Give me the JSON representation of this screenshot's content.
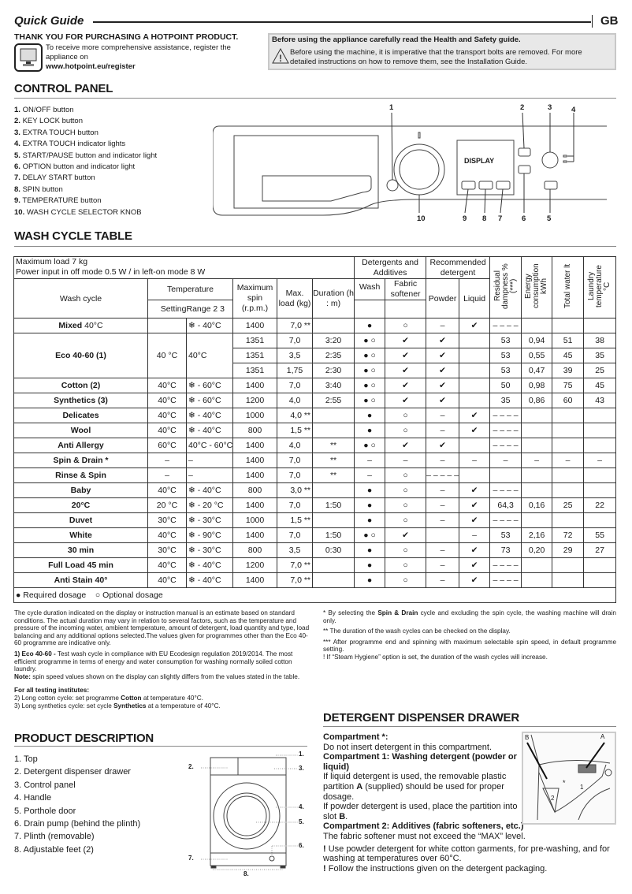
{
  "header": {
    "title": "Quick Guide",
    "lang": "GB"
  },
  "intro": {
    "thanks": "THANK YOU FOR PURCHASING A HOTPOINT PRODUCT.",
    "register_text": "To receive more comprehensive assistance, register the appliance on",
    "register_url": "www.hotpoint.eu/register",
    "icon": "computer-monitor-icon"
  },
  "safety": {
    "title": "Before using the appliance carefully read the Health and Safety guide.",
    "text": "Before using the machine, it is imperative that the transport bolts are removed. For more detailed instructions on how to remove them, see the Installation Guide.",
    "icon": "warning-triangle-icon"
  },
  "control_panel": {
    "title": "CONTROL PANEL",
    "items": [
      {
        "n": "1.",
        "label": "ON/OFF button"
      },
      {
        "n": "2.",
        "label": "KEY LOCK button"
      },
      {
        "n": "3.",
        "label": "EXTRA TOUCH button"
      },
      {
        "n": "4.",
        "label": "EXTRA TOUCH indicator lights"
      },
      {
        "n": "5.",
        "label": "START/PAUSE button and indicator light"
      },
      {
        "n": "6.",
        "label": "OPTION button and indicator light"
      },
      {
        "n": "7.",
        "label": "DELAY START button"
      },
      {
        "n": "8.",
        "label": "SPIN button"
      },
      {
        "n": "9.",
        "label": "TEMPERATURE button"
      },
      {
        "n": "10.",
        "label": "WASH CYCLE SELECTOR KNOB"
      }
    ],
    "display_label": "DISPLAY",
    "callouts": [
      "1",
      "2",
      "3",
      "4",
      "10",
      "9",
      "8",
      "7",
      "6",
      "5"
    ]
  },
  "wash_table": {
    "title": "WASH CYCLE TABLE",
    "max_load": "Maximum load 7 kg",
    "power": "Power input in off  mode 0.5 W / in left-on mode 8 W",
    "headers": {
      "wash_cycle": "Wash cycle",
      "temperature": "Temperature",
      "setting": "Setting",
      "range": "Range 2 3",
      "spin": "Maximum spin (r.p.m.)",
      "load": "Max. load (kg)",
      "duration": "Duration (h : m)",
      "detergents": "Detergents and Additives",
      "wash": "Wash",
      "softener": "Fabric softener",
      "recommended": "Recommended detergent",
      "powder": "Powder",
      "liquid": "Liquid",
      "residual": "Residual dampness % (***)",
      "energy": "Energy consumption kWh",
      "water": "Total water lt",
      "laundry": "Laundry temperature °C"
    },
    "rows": [
      {
        "name": "Mixed",
        "suffix": " 40°C",
        "setting": "",
        "range": "❄ - 40°C",
        "spin": "1400",
        "load": "7,0 **",
        "duration": "",
        "wash": "●",
        "softener": "○",
        "powder": "–",
        "liquid": "✔",
        "residual": "– – – –",
        "energy": "",
        "water": "",
        "laundry": ""
      },
      {
        "name": "Eco 40-60 (1)",
        "suffix": "",
        "setting": "40 °C",
        "range": "40°C",
        "spin": "1351",
        "load": "7,0",
        "duration": "3:20",
        "wash": "● ○",
        "softener": "✔",
        "powder": "✔",
        "liquid": "",
        "residual": "53",
        "energy": "0,94",
        "water": "51",
        "laundry": "38",
        "sub": [
          {
            "spin": "1351",
            "load": "3,5",
            "duration": "2:35",
            "wash": "● ○",
            "softener": "✔",
            "powder": "✔",
            "liquid": "",
            "residual": "53",
            "energy": "0,55",
            "water": "45",
            "laundry": "35"
          },
          {
            "spin": "1351",
            "load": "1,75",
            "duration": "2:30",
            "wash": "● ○",
            "softener": "✔",
            "powder": "✔",
            "liquid": "",
            "residual": "53",
            "energy": "0,47",
            "water": "39",
            "laundry": "25"
          }
        ]
      },
      {
        "name": "Cotton (2)",
        "suffix": "",
        "setting": "40°C",
        "range": "❄ - 60°C",
        "spin": "1400",
        "load": "7,0",
        "duration": "3:40",
        "wash": "● ○",
        "softener": "✔",
        "powder": "✔",
        "liquid": "",
        "residual": "50",
        "energy": "0,98",
        "water": "75",
        "laundry": "45"
      },
      {
        "name": "Synthetics (3)",
        "suffix": "",
        "setting": "40°C",
        "range": "❄ - 60°C",
        "spin": "1200",
        "load": "4,0",
        "duration": "2:55",
        "wash": "● ○",
        "softener": "✔",
        "powder": "✔",
        "liquid": "",
        "residual": "35",
        "energy": "0,86",
        "water": "60",
        "laundry": "43"
      },
      {
        "name": "Delicates",
        "suffix": "",
        "setting": "40°C",
        "range": "❄ - 40°C",
        "spin": "1000",
        "load": "4,0 **",
        "duration": "",
        "wash": "●",
        "softener": "○",
        "powder": "–",
        "liquid": "✔",
        "residual": "– – – –",
        "energy": "",
        "water": "",
        "laundry": ""
      },
      {
        "name": "Wool",
        "suffix": "",
        "setting": "40°C",
        "range": "❄ - 40°C",
        "spin": "800",
        "load": "1,5 **",
        "duration": "",
        "wash": "●",
        "softener": "○",
        "powder": "–",
        "liquid": "✔",
        "residual": "– – – –",
        "energy": "",
        "water": "",
        "laundry": ""
      },
      {
        "name": "Anti Allergy",
        "suffix": "",
        "setting": "60°C",
        "range": "40°C - 60°C",
        "spin": "1400",
        "load": "4,0",
        "duration": "**",
        "wash": "● ○",
        "softener": "✔",
        "powder": "✔",
        "liquid": "",
        "residual": "– – – –",
        "energy": "",
        "water": "",
        "laundry": ""
      },
      {
        "name": "Spin & Drain *",
        "suffix": "",
        "setting": "–",
        "range": "–",
        "spin": "1400",
        "load": "7,0",
        "duration": "**",
        "wash": "–",
        "softener": "–",
        "powder": "–",
        "liquid": "–",
        "residual": "–",
        "energy": "–",
        "water": "–",
        "laundry": "–"
      },
      {
        "name": "Rinse & Spin",
        "suffix": "",
        "setting": "–",
        "range": "–",
        "spin": "1400",
        "load": "7,0",
        "duration": "**",
        "wash": "–",
        "softener": "○",
        "powder": "– – – – – –",
        "liquid": "",
        "residual": "",
        "energy": "",
        "water": "",
        "laundry": ""
      },
      {
        "name": "Baby",
        "suffix": "",
        "setting": "40°C",
        "range": "❄ - 40°C",
        "spin": "800",
        "load": "3,0 **",
        "duration": "",
        "wash": "●",
        "softener": "○",
        "powder": "–",
        "liquid": "✔",
        "residual": "– – – –",
        "energy": "",
        "water": "",
        "laundry": ""
      },
      {
        "name": "20°C",
        "suffix": "",
        "setting": "20 °C",
        "range": "❄ - 20 °C",
        "spin": "1400",
        "load": "7,0",
        "duration": "1:50",
        "wash": "●",
        "softener": "○",
        "powder": "–",
        "liquid": "✔",
        "residual": "64,3",
        "energy": "0,16",
        "water": "25",
        "laundry": "22"
      },
      {
        "name": "Duvet",
        "suffix": "",
        "setting": "30°C",
        "range": "❄ - 30°C",
        "spin": "1000",
        "load": "1,5 **",
        "duration": "",
        "wash": "●",
        "softener": "○",
        "powder": "–",
        "liquid": "✔",
        "residual": "– – – –",
        "energy": "",
        "water": "",
        "laundry": ""
      },
      {
        "name": "White",
        "suffix": "",
        "setting": "40°C",
        "range": "❄ - 90°C",
        "spin": "1400",
        "load": "7,0",
        "duration": "1:50",
        "wash": "● ○",
        "softener": "✔",
        "powder": "",
        "liquid": "–",
        "residual": "53",
        "energy": "2,16",
        "water": "72",
        "laundry": "55"
      },
      {
        "name": "30 min",
        "suffix": "",
        "setting": "30°C",
        "range": "❄ - 30°C",
        "spin": "800",
        "load": "3,5",
        "duration": "0:30",
        "wash": "●",
        "softener": "○",
        "powder": "–",
        "liquid": "✔",
        "residual": "73",
        "energy": "0,20",
        "water": "29",
        "laundry": "27"
      },
      {
        "name": "Full Load 45 min",
        "suffix": "",
        "setting": "40°C",
        "range": "❄ - 40°C",
        "spin": "1200",
        "load": "7,0 **",
        "duration": "",
        "wash": "●",
        "softener": "○",
        "powder": "–",
        "liquid": "✔",
        "residual": "– – – –",
        "energy": "",
        "water": "",
        "laundry": ""
      },
      {
        "name": "Anti Stain 40°",
        "suffix": "",
        "setting": "40°C",
        "range": "❄ - 40°C",
        "spin": "1400",
        "load": "7,0 **",
        "duration": "",
        "wash": "●",
        "softener": "○",
        "powder": "–",
        "liquid": "✔",
        "residual": "– – – –",
        "energy": "",
        "water": "",
        "laundry": ""
      }
    ],
    "legend": {
      "required": "● Required dosage",
      "optional": "○ Optional dosage"
    }
  },
  "notes_left": {
    "p1": "The cycle duration indicated on the display or instruction manual is an estimate based on standard conditions. The actual duration may vary in relation to several factors, such as the temperature and pressure of the incoming water, ambient temperature, amount of detergent, load quantity and type, load balancing and any additional options selected.The values given for programmes other than the Eco 40-60 programme are indicative only.",
    "eco_label": "1) Eco 40-60 -",
    "eco_text": " Test wash cycle in compliance with EU Ecodesign regulation 2019/2014. The most efficient programme in terms of energy and water consumption for washing normally soiled cotton laundry.",
    "note_label": "Note:",
    "note_text": " spin speed values shown on the display can slightly differs from the values stated in the table.",
    "testing_title": "For all testing institutes:",
    "t2a": "2)  Long cotton cycle: set programme ",
    "t2b": "Cotton",
    "t2c": " at temperature 40°C.",
    "t3a": "3)  Long synthetics cycle: set cycle ",
    "t3b": "Synthetics",
    "t3c": " at a temperature of 40°C."
  },
  "notes_right": {
    "n1a": "* By selecting the ",
    "n1b": "Spin & Drain",
    "n1c": " cycle and excluding the spin cycle, the washing machine will drain only.",
    "n2": "**  The duration of the wash cycles can be checked on the display.",
    "n3": "***  After programme end and spinning with maximum selectable spin speed, in default programme setting.",
    "n4": "! If “Steam Hygiene” option is set, the duration of the wash cycles will increase."
  },
  "product": {
    "title": "PRODUCT DESCRIPTION",
    "items": [
      "1. Top",
      "2. Detergent dispenser drawer",
      "3. Control panel",
      "4. Handle",
      "5. Porthole door",
      "6. Drain pump (behind the plinth)",
      "7. Plinth (removable)",
      "8. Adjustable feet (2)"
    ],
    "callouts": [
      "1.",
      "2.",
      "3.",
      "4.",
      "5.",
      "6.",
      "7.",
      "8."
    ]
  },
  "drawer": {
    "title": "DETERGENT DISPENSER DRAWER",
    "c0_title": "Compartment *:",
    "c0_text": "Do not insert detergent in this compartment.",
    "c1_title": "Compartment 1: Washing detergent (powder or liquid)",
    "c1_a": "If liquid detergent is used, the removable plastic partition ",
    "c1_b": "A",
    "c1_c": " (supplied) should be used for proper dosage.",
    "c1_d": "If powder detergent is used, place the partition into slot ",
    "c1_e": "B",
    "c1_f": ".",
    "c2_title": "Compartment 2: Additives (fabric softeners, etc.)",
    "c2_text": "The fabric softener must not exceed the “MAX” level.",
    "w1": "Use powder detergent for white cotton garments, for pre-washing, and for washing at temperatures over 60°C.",
    "w2": "Follow the instructions given on the detergent packaging.",
    "bang": "!",
    "fig_labels": {
      "a": "A",
      "b": "B",
      "star": "*",
      "one": "1",
      "two": "2"
    }
  }
}
